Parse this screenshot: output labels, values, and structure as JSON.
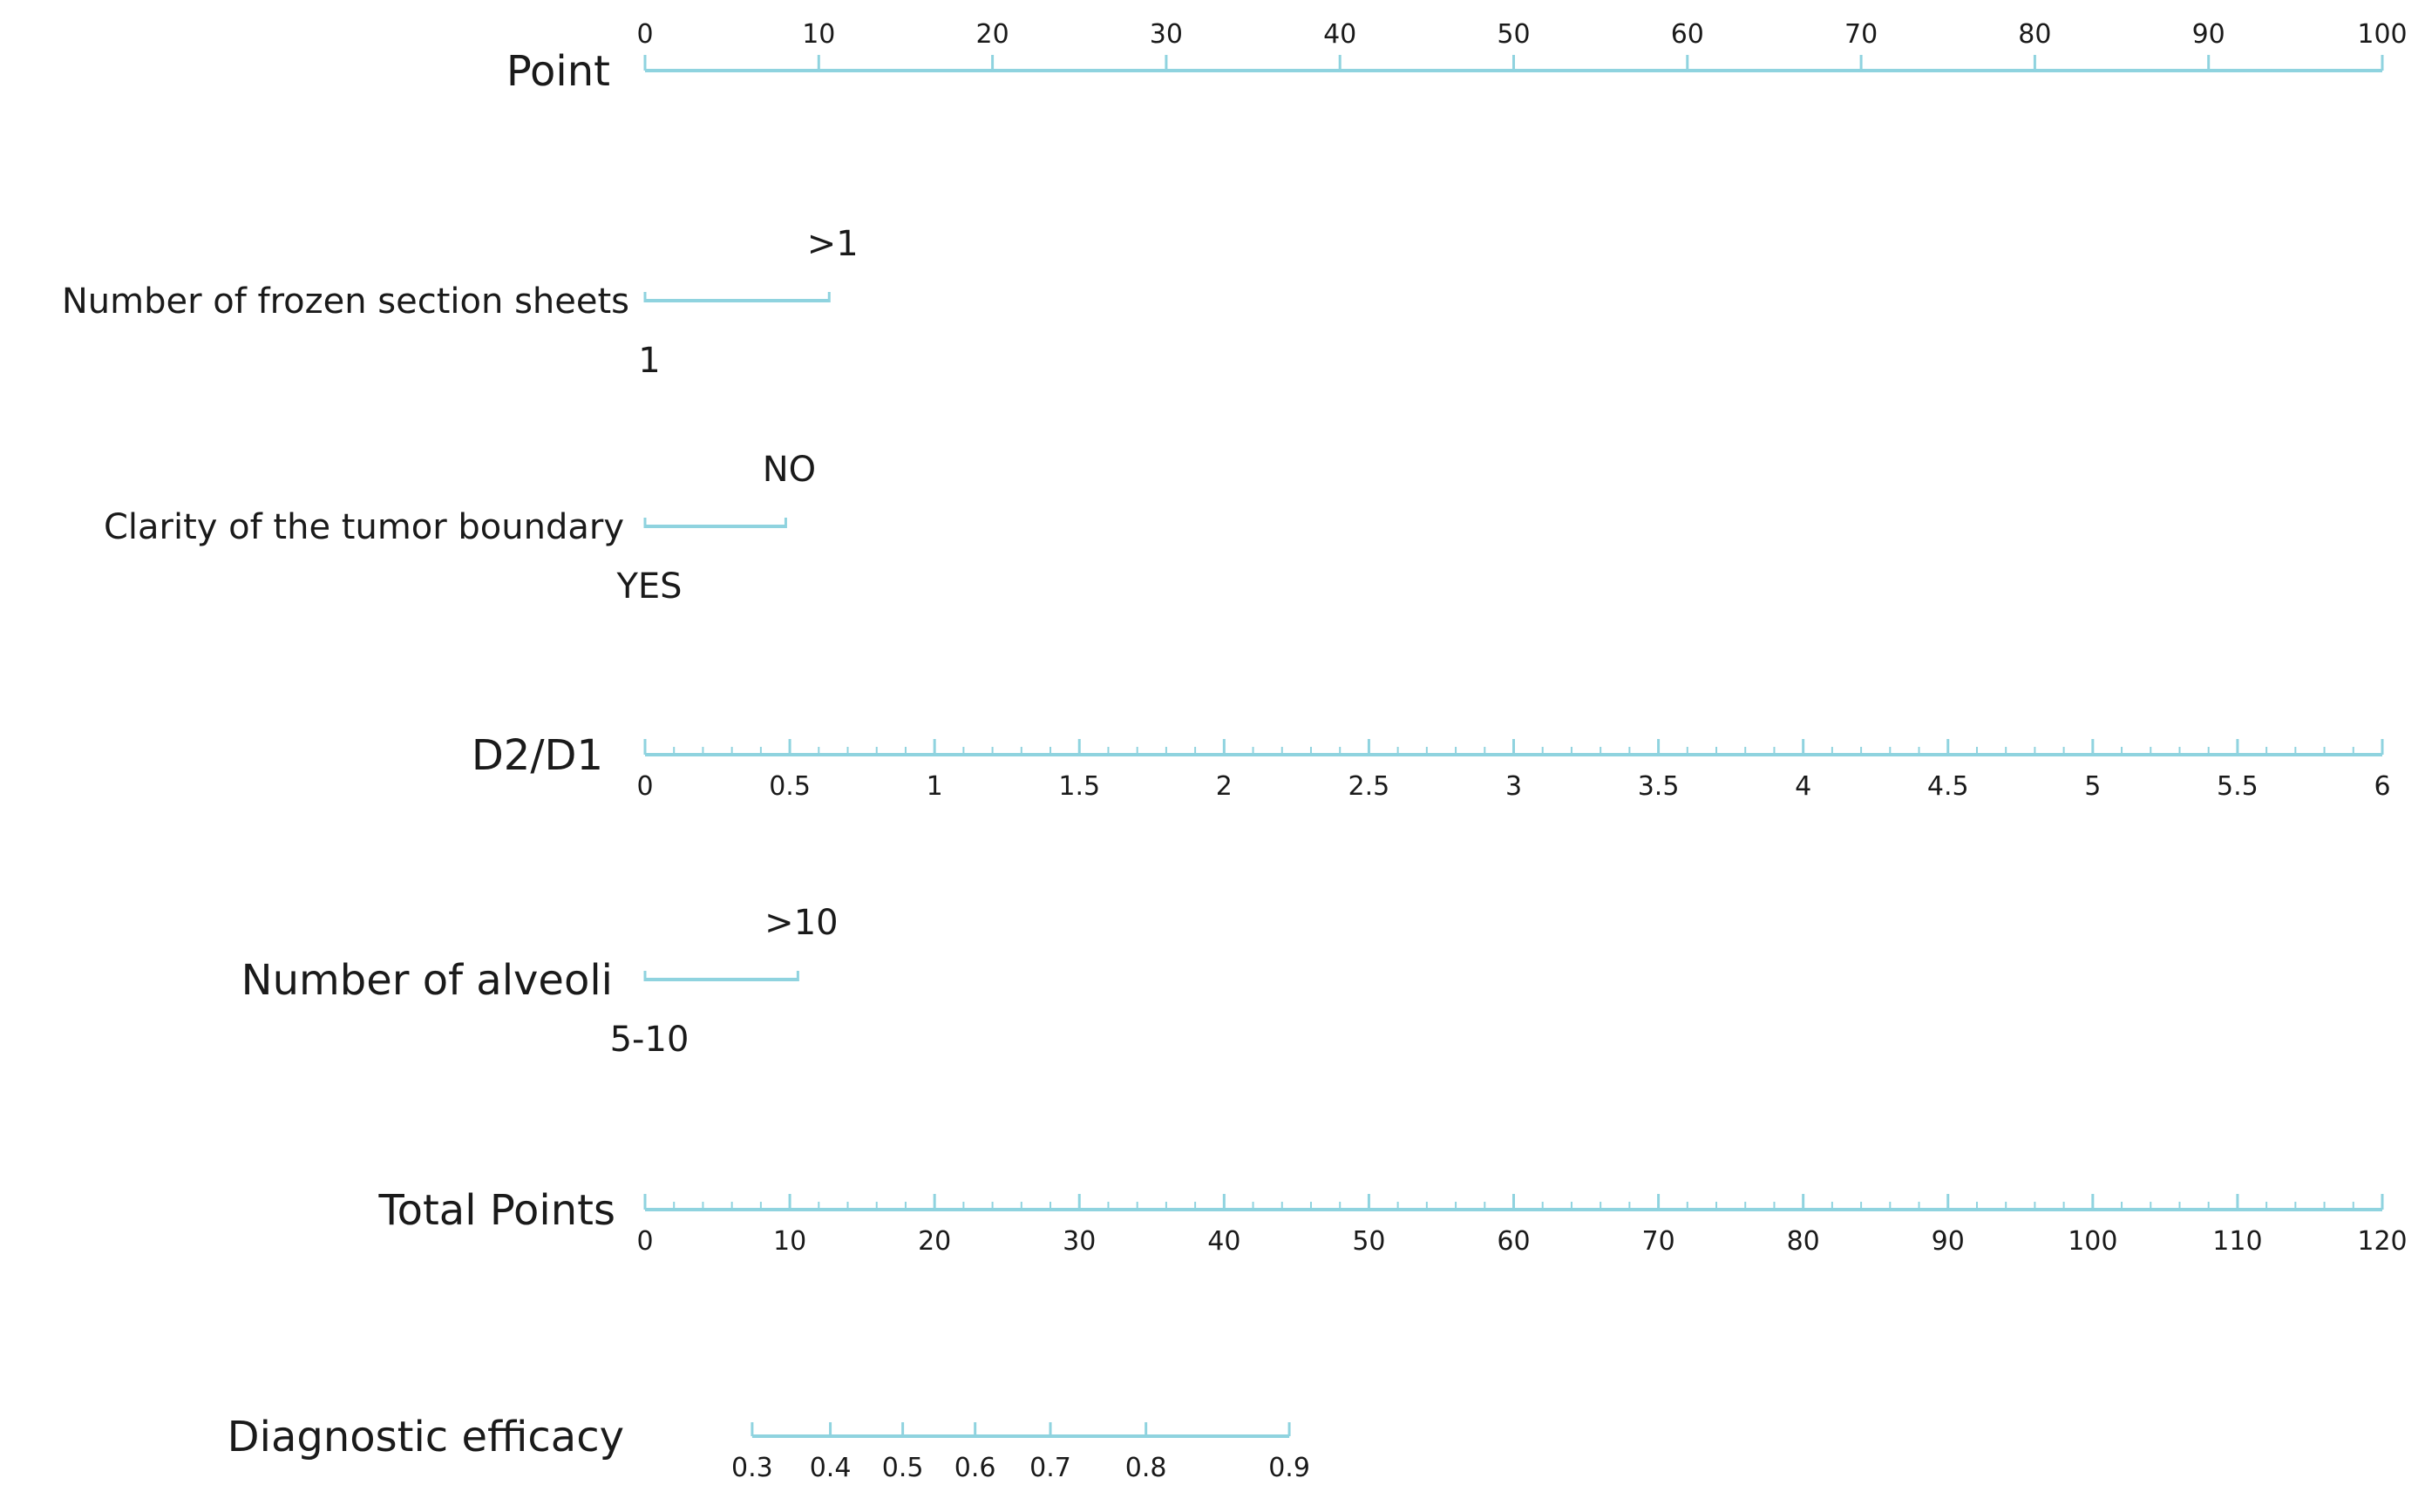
{
  "chart_data": {
    "type": "nomogram",
    "title": "",
    "colors": {
      "axis": "#8fd3df",
      "text": "#1a1a1a"
    },
    "axes": [
      {
        "id": "point",
        "label": "Point",
        "kind": "continuous",
        "range": [
          0,
          100
        ],
        "points_range": [
          0,
          100
        ],
        "ticks": [
          "0",
          "10",
          "20",
          "30",
          "40",
          "50",
          "60",
          "70",
          "80",
          "90",
          "100"
        ],
        "tick_values": [
          0,
          10,
          20,
          30,
          40,
          50,
          60,
          70,
          80,
          90,
          100
        ],
        "tick_side": "above"
      },
      {
        "id": "frozen-sections",
        "label": "Number of frozen section sheets",
        "kind": "categorical",
        "levels": [
          {
            "label": "1",
            "points": 0,
            "side": "below"
          },
          {
            "label": ">1",
            "points": 10.6,
            "side": "above"
          }
        ]
      },
      {
        "id": "tumor-boundary",
        "label": "Clarity of the tumor boundary",
        "kind": "categorical",
        "levels": [
          {
            "label": "YES",
            "points": 0,
            "side": "below"
          },
          {
            "label": "NO",
            "points": 8.1,
            "side": "above"
          }
        ]
      },
      {
        "id": "d2-d1",
        "label": "D2/D1",
        "kind": "continuous",
        "range": [
          0,
          6
        ],
        "points_range": [
          0,
          100
        ],
        "ticks": [
          "0",
          "0.5",
          "1",
          "1.5",
          "2",
          "2.5",
          "3",
          "3.5",
          "4",
          "4.5",
          "5",
          "5.5",
          "6"
        ],
        "tick_values": [
          0,
          0.5,
          1,
          1.5,
          2,
          2.5,
          3,
          3.5,
          4,
          4.5,
          5,
          5.5,
          6
        ],
        "tick_side": "below"
      },
      {
        "id": "alveoli",
        "label": "Number of alveoli",
        "kind": "categorical",
        "levels": [
          {
            "label": "5-10",
            "points": 0,
            "side": "below"
          },
          {
            "label": ">10",
            "points": 8.8,
            "side": "above"
          }
        ]
      },
      {
        "id": "total-points",
        "label": "Total Points",
        "kind": "continuous",
        "range": [
          0,
          120
        ],
        "ticks": [
          "0",
          "10",
          "20",
          "30",
          "40",
          "50",
          "60",
          "70",
          "80",
          "90",
          "100",
          "110",
          "120"
        ],
        "tick_values": [
          0,
          10,
          20,
          30,
          40,
          50,
          60,
          70,
          80,
          90,
          100,
          110,
          120
        ],
        "tick_side": "below"
      },
      {
        "id": "diagnostic-efficacy",
        "label": "Diagnostic efficacy",
        "kind": "nonlinear",
        "ticks": [
          "0.3",
          "0.4",
          "0.5",
          "0.6",
          "0.7",
          "0.8",
          "0.9"
        ],
        "tick_values": [
          0.3,
          0.4,
          0.5,
          0.6,
          0.7,
          0.8,
          0.9
        ],
        "tick_total_points": [
          7.4,
          12.8,
          17.8,
          22.8,
          28.0,
          34.6,
          44.5
        ],
        "line_total_points_range": [
          7.4,
          44.5
        ],
        "tick_side": "below"
      }
    ]
  }
}
